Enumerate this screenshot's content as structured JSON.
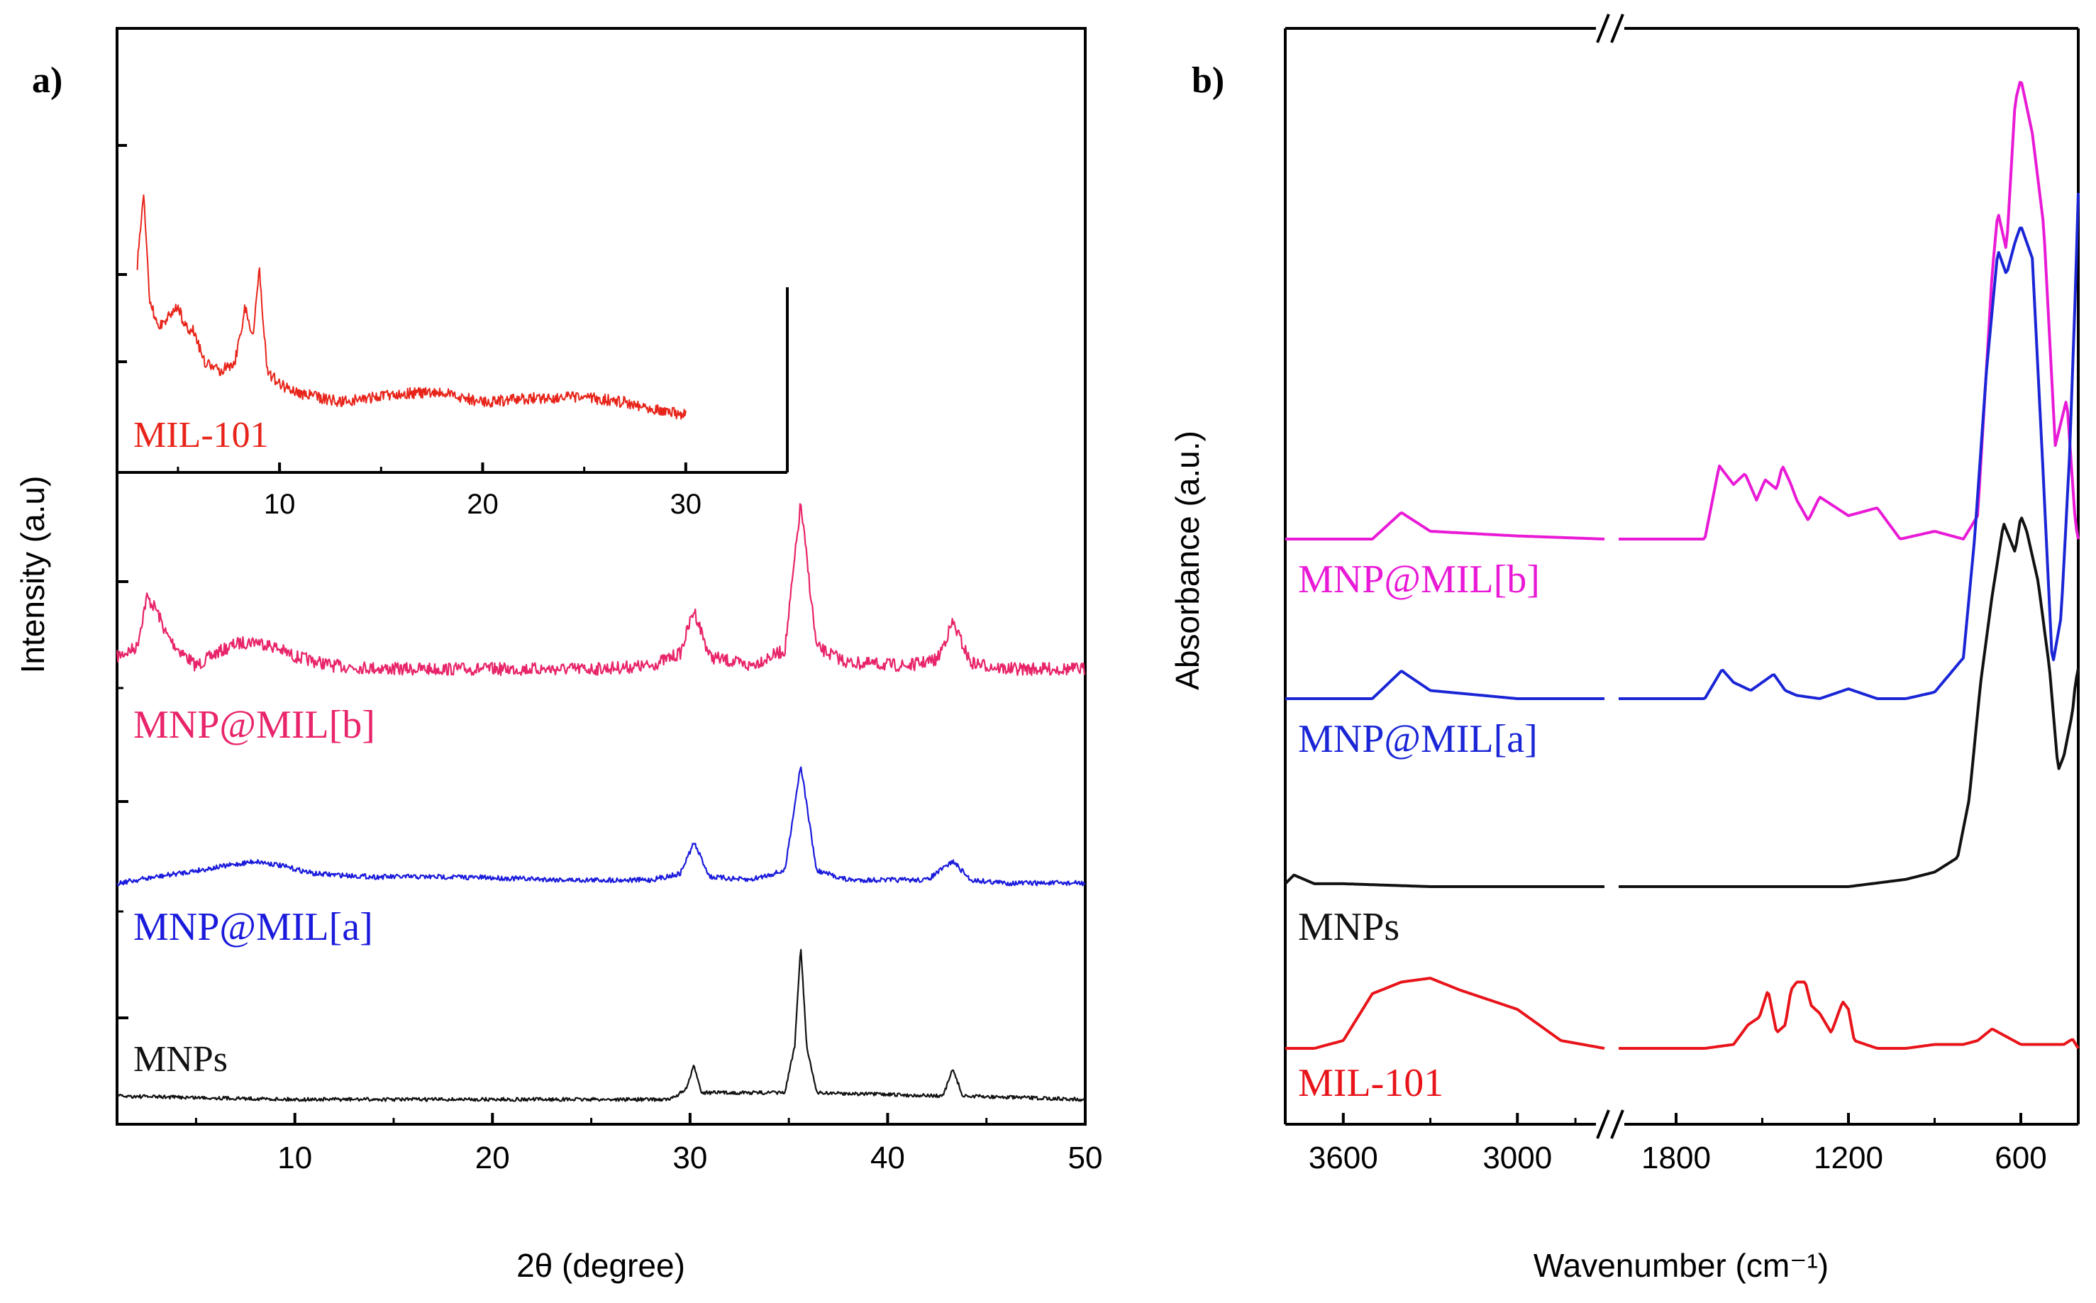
{
  "chart_data": [
    {
      "panel_label": "a)",
      "type": "line",
      "xlabel": "2θ (degree)",
      "ylabel": "Intensity (a.u)",
      "xlim": [
        1,
        50
      ],
      "x_ticks": [
        "10",
        "20",
        "30",
        "40",
        "50"
      ],
      "grid": false,
      "series": [
        {
          "name": "MNP@MIL[b]",
          "color": "#e8246a",
          "x": [
            1,
            2,
            2.5,
            3,
            3.5,
            4,
            5,
            6,
            7,
            8,
            9,
            10,
            12,
            15,
            20,
            25,
            28,
            29.5,
            30.2,
            31,
            33,
            34.8,
            35.6,
            36.4,
            38,
            41,
            42.5,
            43.3,
            44.2,
            46,
            50
          ],
          "y": [
            0.3,
            0.45,
            1.25,
            1.05,
            0.65,
            0.45,
            0.15,
            0.35,
            0.5,
            0.55,
            0.45,
            0.3,
            0.15,
            0.1,
            0.1,
            0.1,
            0.15,
            0.35,
            1.05,
            0.3,
            0.15,
            0.4,
            2.75,
            0.45,
            0.2,
            0.15,
            0.25,
            0.85,
            0.2,
            0.1,
            0.1
          ]
        },
        {
          "name": "MNP@MIL[a]",
          "color": "#1a1adc",
          "x": [
            1,
            3,
            5,
            7,
            8,
            9,
            11,
            14,
            18,
            24,
            28,
            29.5,
            30.2,
            31,
            33,
            34.8,
            35.6,
            36.4,
            38,
            42,
            43.3,
            44.2,
            46,
            50
          ],
          "y": [
            0,
            0.1,
            0.2,
            0.3,
            0.35,
            0.3,
            0.15,
            0.1,
            0.1,
            0.05,
            0.05,
            0.15,
            0.65,
            0.1,
            0.05,
            0.2,
            1.9,
            0.2,
            0.05,
            0.05,
            0.35,
            0.05,
            0.0,
            0.0
          ]
        },
        {
          "name": "MNPs",
          "color": "#111111",
          "x": [
            1,
            10,
            20,
            29,
            29.8,
            30.2,
            30.6,
            34.8,
            35.3,
            35.6,
            35.9,
            36.4,
            42.8,
            43.3,
            43.8,
            50
          ],
          "y": [
            0.05,
            0.0,
            0.0,
            0.0,
            0.15,
            0.5,
            0.1,
            0.1,
            0.8,
            2.3,
            0.8,
            0.1,
            0.05,
            0.45,
            0.05,
            0.0
          ]
        }
      ],
      "inset": {
        "xlim": [
          2,
          35
        ],
        "x_ticks": [
          "10",
          "20",
          "30"
        ],
        "series": [
          {
            "name": "MIL-101",
            "color": "#e8241a",
            "x": [
              3,
              3.3,
              3.6,
              4,
              4.5,
              5,
              5.3,
              5.8,
              6.3,
              7,
              7.8,
              8.3,
              8.7,
              9.0,
              9.4,
              10,
              11,
              13,
              16,
              18,
              20,
              23,
              25,
              27,
              30
            ],
            "y": [
              1.8,
              2.6,
              1.4,
              1.1,
              1.2,
              1.35,
              1.1,
              1.05,
              0.7,
              0.6,
              0.7,
              1.3,
              1.0,
              1.75,
              0.6,
              0.45,
              0.35,
              0.25,
              0.35,
              0.35,
              0.25,
              0.3,
              0.3,
              0.25,
              0.1
            ]
          }
        ]
      },
      "legend": "labels beneath each trace"
    },
    {
      "panel_label": "b)",
      "type": "line",
      "xlabel": "Wavenumber (cm⁻¹)",
      "ylabel": "Absorbance (a.u.)",
      "x_ticks": [
        "3600",
        "3000",
        "1800",
        "1200",
        "600"
      ],
      "x_axis": "reversed, with a broken axis between 2700 and 2000",
      "grid": false,
      "series": [
        {
          "name": "MNP@MIL[b]",
          "color": "#e91ad6",
          "x": [
            3800,
            3500,
            3400,
            3300,
            3000,
            2700,
            2000,
            1700,
            1650,
            1600,
            1560,
            1520,
            1490,
            1450,
            1430,
            1400,
            1380,
            1340,
            1300,
            1200,
            1100,
            1020,
            900,
            800,
            750,
            700,
            680,
            650,
            620,
            600,
            560,
            520,
            480,
            440,
            410,
            400
          ],
          "y": [
            0.0,
            0.0,
            0.17,
            0.05,
            0.02,
            0.0,
            0.0,
            0.0,
            0.47,
            0.35,
            0.42,
            0.25,
            0.38,
            0.32,
            0.47,
            0.35,
            0.25,
            0.12,
            0.27,
            0.15,
            0.2,
            0.0,
            0.05,
            0.0,
            0.15,
            1.7,
            2.1,
            1.85,
            2.8,
            2.95,
            2.6,
            2.0,
            0.6,
            0.9,
            0.1,
            0.0
          ]
        },
        {
          "name": "MNP@MIL[a]",
          "color": "#1a26d6",
          "x": [
            3800,
            3500,
            3400,
            3300,
            3000,
            2700,
            2000,
            1700,
            1640,
            1600,
            1540,
            1500,
            1460,
            1420,
            1380,
            1300,
            1200,
            1100,
            1000,
            900,
            800,
            760,
            720,
            680,
            650,
            620,
            600,
            560,
            520,
            490,
            460,
            430,
            410,
            400
          ],
          "y": [
            0.0,
            0.0,
            0.17,
            0.05,
            0.0,
            0.0,
            0.0,
            0.0,
            0.18,
            0.1,
            0.05,
            0.1,
            0.15,
            0.05,
            0.02,
            0.0,
            0.06,
            0.0,
            0.0,
            0.04,
            0.25,
            1.0,
            2.0,
            2.75,
            2.6,
            2.8,
            2.9,
            2.7,
            1.3,
            0.2,
            0.5,
            1.5,
            2.5,
            3.1
          ]
        },
        {
          "name": "MNPs",
          "color": "#111111",
          "x": [
            3800,
            3770,
            3700,
            3600,
            3300,
            3000,
            2700,
            2000,
            1500,
            1200,
            1000,
            900,
            820,
            780,
            740,
            700,
            660,
            620,
            600,
            580,
            540,
            500,
            470,
            450,
            420,
            410,
            400
          ],
          "y": [
            0.02,
            0.08,
            0.02,
            0.02,
            0.0,
            0.0,
            0.0,
            0.0,
            0.0,
            0.0,
            0.05,
            0.1,
            0.2,
            0.6,
            1.4,
            2.0,
            2.5,
            2.3,
            2.55,
            2.45,
            2.1,
            1.5,
            0.8,
            0.9,
            1.2,
            1.4,
            1.5
          ]
        },
        {
          "name": "MIL-101",
          "color": "#e8141a",
          "x": [
            3800,
            3700,
            3600,
            3500,
            3400,
            3300,
            3200,
            3000,
            2850,
            2700,
            2000,
            1700,
            1600,
            1550,
            1510,
            1480,
            1450,
            1420,
            1400,
            1380,
            1350,
            1330,
            1300,
            1260,
            1220,
            1200,
            1180,
            1100,
            1000,
            900,
            800,
            750,
            700,
            600,
            500,
            450,
            420,
            400
          ],
          "y": [
            0.0,
            0.0,
            0.1,
            0.7,
            0.85,
            0.9,
            0.75,
            0.5,
            0.1,
            0.0,
            0.0,
            0.0,
            0.05,
            0.3,
            0.4,
            0.75,
            0.2,
            0.3,
            0.75,
            0.85,
            0.85,
            0.55,
            0.45,
            0.2,
            0.6,
            0.5,
            0.1,
            0.0,
            0.0,
            0.05,
            0.05,
            0.1,
            0.25,
            0.05,
            0.05,
            0.05,
            0.12,
            0.0
          ]
        }
      ],
      "legend": "labels beneath each trace"
    }
  ]
}
